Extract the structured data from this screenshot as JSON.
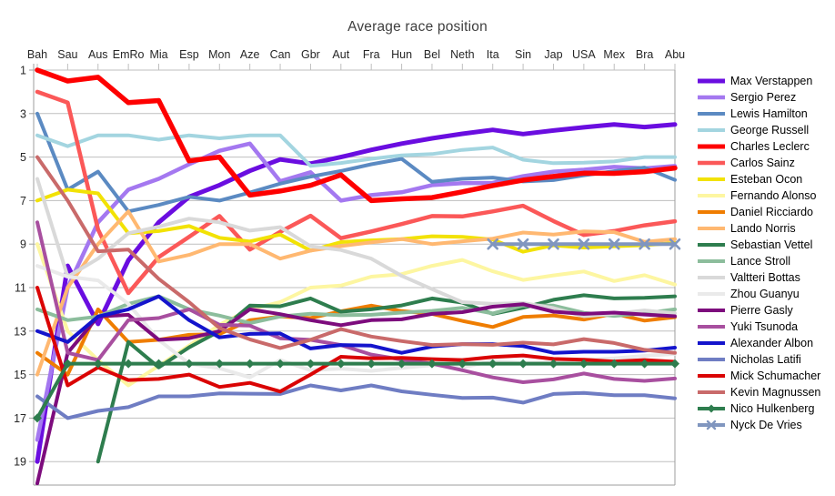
{
  "chart_data": {
    "type": "line",
    "title": "Average race position",
    "x_categories": [
      "Bah",
      "Sau",
      "Aus",
      "EmRo",
      "Mia",
      "Esp",
      "Mon",
      "Aze",
      "Can",
      "Gbr",
      "Aut",
      "Fra",
      "Hun",
      "Bel",
      "Neth",
      "Ita",
      "Sin",
      "Jap",
      "USA",
      "Mex",
      "Bra",
      "Abu"
    ],
    "y_ticks": [
      1,
      3,
      5,
      7,
      9,
      11,
      13,
      15,
      17,
      19
    ],
    "y_axis_inverted": true,
    "y_range": [
      1,
      20
    ],
    "grid": "horizontal",
    "legend_position": "right",
    "colors": {
      "gridline": "#bfbfbf",
      "axis": "#9e9e9e",
      "tick_label": "#262626",
      "title": "#3f3f3f"
    },
    "series": [
      {
        "name": "Max Verstappen",
        "color": "#6a0de0",
        "width": 5,
        "marker": "none",
        "values": [
          19,
          10,
          12.67,
          9.75,
          8,
          6.83,
          6.29,
          5.63,
          5.11,
          5.3,
          5,
          4.67,
          4.38,
          4.14,
          3.93,
          3.75,
          3.94,
          3.78,
          3.63,
          3.5,
          3.62,
          3.5
        ]
      },
      {
        "name": "Sergio Perez",
        "color": "#a478f0",
        "width": 4.5,
        "marker": "none",
        "values": [
          18,
          11,
          8,
          6.5,
          6,
          5.33,
          4.71,
          4.38,
          6.11,
          5.7,
          7,
          6.75,
          6.62,
          6.29,
          6.2,
          6.19,
          5.88,
          5.67,
          5.58,
          5.45,
          5.52,
          5.41
        ]
      },
      {
        "name": "Lewis Hamilton",
        "color": "#5b8ac2",
        "width": 4,
        "marker": "none",
        "values": [
          3,
          6.5,
          5.67,
          7.5,
          7.2,
          6.83,
          7,
          6.63,
          6.22,
          5.9,
          5.64,
          5.33,
          5.08,
          6.14,
          6,
          5.94,
          6.12,
          6.06,
          5.84,
          5.65,
          5.48,
          6.05
        ]
      },
      {
        "name": "George Russell",
        "color": "#a3d5e0",
        "width": 4,
        "marker": "none",
        "values": [
          4,
          4.5,
          4,
          4,
          4.2,
          4,
          4.14,
          4,
          4,
          5.4,
          5.27,
          5.08,
          4.92,
          4.86,
          4.67,
          4.56,
          5.12,
          5.28,
          5.26,
          5.2,
          5,
          5
        ]
      },
      {
        "name": "Charles Leclerc",
        "color": "#fe0000",
        "width": 5.5,
        "marker": "none",
        "values": [
          1,
          1.5,
          1.33,
          2.5,
          2.4,
          5.17,
          5,
          6.75,
          6.56,
          6.3,
          5.82,
          7,
          6.92,
          6.86,
          6.6,
          6.31,
          6.06,
          5.89,
          5.74,
          5.75,
          5.67,
          5.5
        ]
      },
      {
        "name": "Carlos Sainz",
        "color": "#fb5858",
        "width": 4.5,
        "marker": "none",
        "values": [
          2,
          2.5,
          8.33,
          11.25,
          9.6,
          8.67,
          7.71,
          9.25,
          8.44,
          7.7,
          8.73,
          8.42,
          8.08,
          7.71,
          7.73,
          7.5,
          7.24,
          7.94,
          8.58,
          8.4,
          8.14,
          7.95
        ]
      },
      {
        "name": "Esteban Ocon",
        "color": "#f2e205",
        "width": 4,
        "marker": "none",
        "values": [
          7,
          6.5,
          6.67,
          8.5,
          8.4,
          8.17,
          8.71,
          8.88,
          8.56,
          9.3,
          8.91,
          8.83,
          8.77,
          8.64,
          8.67,
          8.79,
          9.35,
          9.06,
          9.16,
          9.1,
          9.05,
          8.95
        ]
      },
      {
        "name": "Fernando Alonso",
        "color": "#fdf6a1",
        "width": 4,
        "marker": "none",
        "values": [
          9,
          13,
          14.33,
          15.5,
          14.6,
          13.67,
          12.71,
          12,
          11.67,
          11,
          10.91,
          10.5,
          10.38,
          10,
          9.73,
          10.25,
          10.65,
          10.44,
          10.26,
          10.7,
          10.43,
          10.86
        ]
      },
      {
        "name": "Daniel Ricciardo",
        "color": "#ef7d00",
        "width": 4,
        "marker": "none",
        "values": [
          14,
          15,
          12,
          13.5,
          13.4,
          13.17,
          13.14,
          12.5,
          12.33,
          12.4,
          12.09,
          11.83,
          12.08,
          12.21,
          12.53,
          12.81,
          12.35,
          12.28,
          12.47,
          12.2,
          12.52,
          12.36
        ]
      },
      {
        "name": "Lando Norris",
        "color": "#ffb871",
        "width": 4,
        "marker": "none",
        "values": [
          15,
          11,
          9,
          7.5,
          9.8,
          9.5,
          9,
          9,
          9.67,
          9.3,
          9.09,
          8.92,
          8.77,
          9,
          8.87,
          8.75,
          8.47,
          8.56,
          8.42,
          8.45,
          8.9,
          8.77
        ]
      },
      {
        "name": "Sebastian Vettel",
        "color": "#2e7d4e",
        "width": 4,
        "marker": "none",
        "values": [
          null,
          null,
          19,
          13.5,
          14.67,
          13.75,
          13,
          11.83,
          11.86,
          11.5,
          12.11,
          12,
          11.82,
          11.5,
          11.69,
          12.21,
          11.93,
          11.56,
          11.35,
          11.5,
          11.47,
          11.4
        ]
      },
      {
        "name": "Lance Stroll",
        "color": "#8cbd9c",
        "width": 4,
        "marker": "none",
        "values": [
          12,
          12.5,
          12.33,
          11.75,
          11.4,
          12,
          12.29,
          12.63,
          12.33,
          12.2,
          12.27,
          12.25,
          12.15,
          12.07,
          11.93,
          12.19,
          11.82,
          11.83,
          12.16,
          12.3,
          12.19,
          12
        ]
      },
      {
        "name": "Valtteri Bottas",
        "color": "#d9d9d9",
        "width": 4,
        "marker": "none",
        "values": [
          6,
          10.5,
          9.67,
          8.5,
          8.2,
          7.83,
          8,
          8.38,
          8.22,
          9.1,
          9.27,
          9.67,
          10.46,
          11.07,
          11.67,
          11.75,
          11.71,
          11.94,
          12.32,
          12.2,
          12.05,
          12.18
        ]
      },
      {
        "name": "Zhou Guanyu",
        "color": "#eaeaea",
        "width": 4,
        "marker": "none",
        "values": [
          10,
          10.5,
          10.67,
          11.75,
          13.4,
          14.5,
          14.71,
          15.13,
          14.33,
          14.8,
          14.73,
          14.83,
          14.69,
          14.57,
          14.67,
          14.38,
          14.47,
          14.44,
          14.32,
          14.25,
          14.14,
          14.05
        ]
      },
      {
        "name": "Pierre Gasly",
        "color": "#7d0c7d",
        "width": 4,
        "marker": "none",
        "values": [
          20,
          14,
          12.33,
          12.25,
          13.4,
          13.33,
          13,
          12,
          12.22,
          12.5,
          12.73,
          12.5,
          12.46,
          12.21,
          12.13,
          11.88,
          11.76,
          12.11,
          12.21,
          12.15,
          12.24,
          12.32
        ]
      },
      {
        "name": "Yuki Tsunoda",
        "color": "#a84f9f",
        "width": 4,
        "marker": "none",
        "values": [
          8,
          14,
          14.33,
          12.5,
          12.4,
          12,
          12.71,
          12.75,
          13.33,
          13.4,
          13.64,
          14.08,
          14.31,
          14.5,
          14.8,
          15.13,
          15.35,
          15.22,
          14.95,
          15.2,
          15.29,
          15.18
        ]
      },
      {
        "name": "Alexander Albon",
        "color": "#1414cc",
        "width": 4,
        "marker": "none",
        "values": [
          13,
          13.5,
          12.33,
          12,
          11.4,
          12.5,
          13.29,
          13.13,
          13.11,
          13.8,
          13.64,
          13.67,
          14,
          13.71,
          13.6,
          13.6,
          13.69,
          14,
          13.95,
          13.95,
          13.9,
          13.76
        ]
      },
      {
        "name": "Nicholas Latifi",
        "color": "#6f7dc3",
        "width": 4,
        "marker": "none",
        "values": [
          16,
          17,
          16.67,
          16.5,
          16,
          16,
          15.86,
          15.88,
          15.89,
          15.5,
          15.73,
          15.5,
          15.77,
          15.93,
          16.07,
          16.06,
          16.29,
          15.89,
          15.84,
          15.95,
          15.95,
          16.09
        ]
      },
      {
        "name": "Mick Schumacher",
        "color": "#da0404",
        "width": 4,
        "marker": "none",
        "values": [
          11,
          15.5,
          14.67,
          15.25,
          15.2,
          15,
          15.57,
          15.38,
          15.78,
          15,
          14.18,
          14.25,
          14.23,
          14.29,
          14.33,
          14.19,
          14.12,
          14.28,
          14.32,
          14.4,
          14.33,
          14.41
        ]
      },
      {
        "name": "Kevin Magnussen",
        "color": "#c96a6a",
        "width": 4,
        "marker": "none",
        "values": [
          5,
          7,
          9.33,
          9.25,
          10.6,
          11.67,
          12.86,
          13.38,
          13.78,
          13.4,
          12.91,
          13.25,
          13.46,
          13.64,
          13.6,
          13.63,
          13.53,
          13.61,
          13.37,
          13.55,
          13.86,
          14
        ]
      },
      {
        "name": "Nico Hulkenberg",
        "color": "#2e7d4e",
        "width": 4,
        "marker": "diamond",
        "values": [
          17,
          14.5,
          14.5,
          14.5,
          14.5,
          14.5,
          14.5,
          14.5,
          14.5,
          14.5,
          14.5,
          14.5,
          14.5,
          14.5,
          14.5,
          14.5,
          14.5,
          14.5,
          14.5,
          14.5,
          14.5,
          14.5
        ]
      },
      {
        "name": "Nyck De Vries",
        "color": "#8096bf",
        "width": 4,
        "marker": "x",
        "values": [
          null,
          null,
          null,
          null,
          null,
          null,
          null,
          null,
          null,
          null,
          null,
          null,
          null,
          null,
          null,
          9,
          9,
          9,
          9,
          9,
          9,
          9
        ]
      }
    ]
  }
}
